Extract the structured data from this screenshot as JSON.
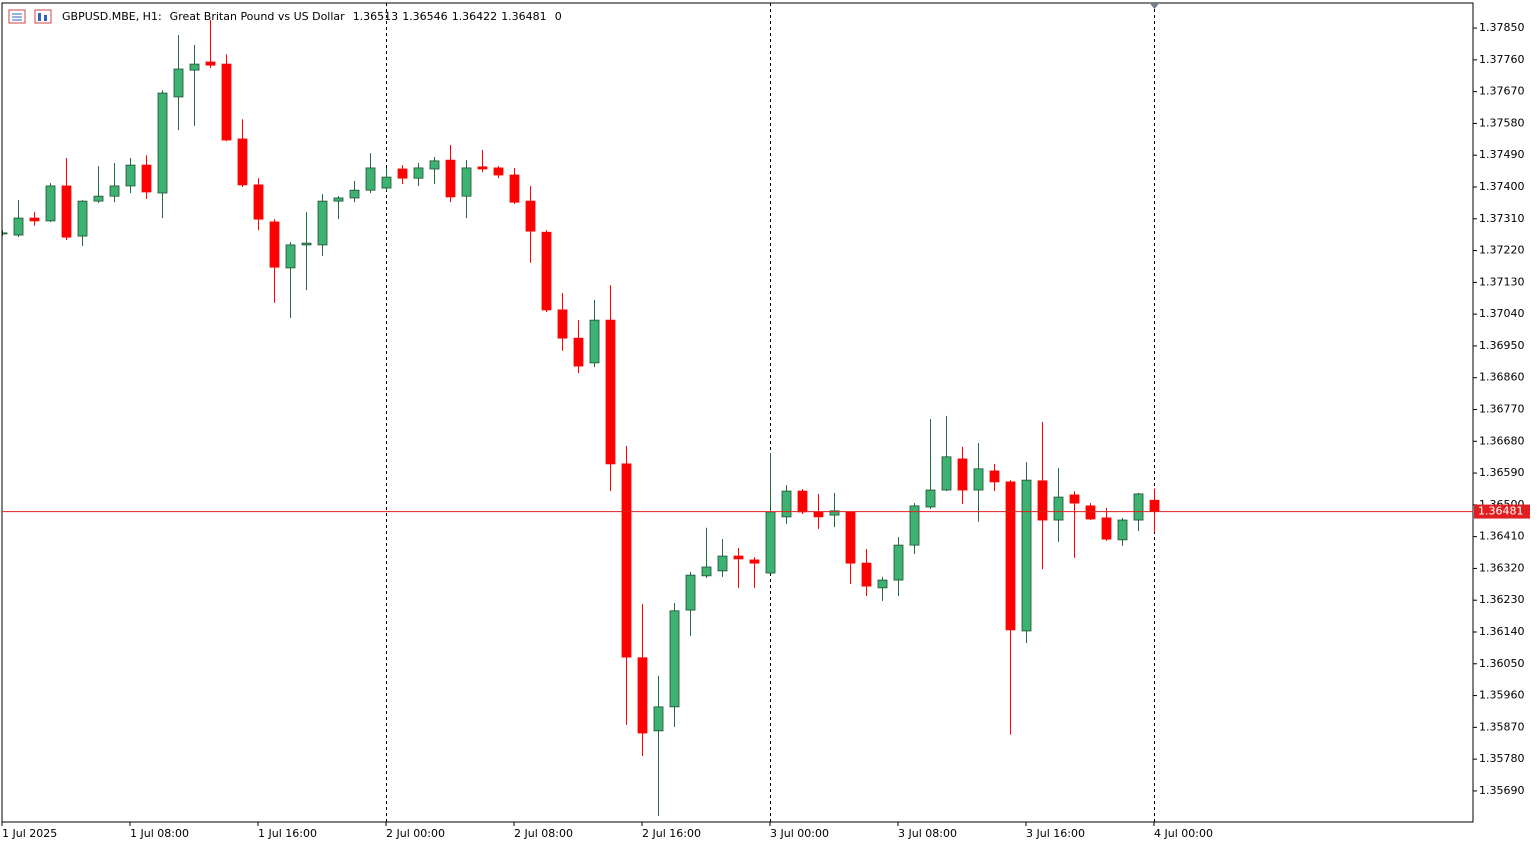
{
  "chart_data": {
    "type": "candlestick",
    "title": "GBPUSD.MBE, H1:",
    "subtitle": "Great Britan Pound vs US Dollar",
    "spread": 0,
    "up_color": "#3cb371",
    "down_color": "#ff0000",
    "price_line_color": "#e02020",
    "period_separators": true,
    "categories": [
      "1 Jul 2025",
      null,
      null,
      null,
      null,
      null,
      null,
      null,
      "1 Jul 08:00",
      null,
      null,
      null,
      null,
      null,
      null,
      null,
      "1 Jul 16:00",
      null,
      null,
      null,
      null,
      null,
      null,
      null,
      "2 Jul 00:00",
      null,
      null,
      null,
      null,
      null,
      null,
      null,
      "2 Jul 08:00",
      null,
      null,
      null,
      null,
      null,
      null,
      null,
      "2 Jul 16:00",
      null,
      null,
      null,
      null,
      null,
      null,
      null,
      "3 Jul 00:00",
      null,
      null,
      null,
      null,
      null,
      null,
      null,
      "3 Jul 08:00",
      null,
      null,
      null,
      null,
      null,
      null,
      null,
      "3 Jul 16:00",
      null,
      null,
      null,
      null,
      null,
      null,
      null,
      "4 Jul 00:00"
    ],
    "open": [
      1.3727,
      1.37264,
      1.37312,
      1.37304,
      1.37403,
      1.37261,
      1.3736,
      1.37374,
      1.37403,
      1.37462,
      1.37383,
      1.37655,
      1.37731,
      1.37754,
      1.37748,
      1.37536,
      1.37406,
      1.37301,
      1.37171,
      1.37236,
      1.37236,
      1.3736,
      1.37369,
      1.37391,
      1.37397,
      1.37451,
      1.37425,
      1.37451,
      1.37476,
      1.37374,
      1.37457,
      1.37454,
      1.37434,
      1.3736,
      1.37272,
      1.37052,
      1.36972,
      1.36902,
      1.37023,
      1.36616,
      1.36067,
      1.3586,
      1.35928,
      1.36202,
      1.36299,
      1.36313,
      1.36355,
      1.36344,
      1.36307,
      1.36466,
      1.36539,
      1.3648,
      1.36471,
      1.3648,
      1.36335,
      1.36265,
      1.36287,
      1.36386,
      1.36494,
      1.36542,
      1.3663,
      1.36542,
      1.36596,
      1.36565,
      1.36143,
      1.36568,
      1.36457,
      1.36528,
      1.36497,
      1.36463,
      1.36401,
      1.36457,
      1.36513
    ],
    "high": [
      1.37278,
      1.37363,
      1.37329,
      1.37411,
      1.37482,
      1.37363,
      1.37459,
      1.37468,
      1.37482,
      1.3749,
      1.37674,
      1.3783,
      1.37802,
      1.37873,
      1.37776,
      1.37592,
      1.37425,
      1.37309,
      1.37244,
      1.37329,
      1.3738,
      1.37374,
      1.37417,
      1.37496,
      1.37454,
      1.37462,
      1.37468,
      1.37485,
      1.37519,
      1.37476,
      1.37505,
      1.37459,
      1.37454,
      1.37403,
      1.37278,
      1.371,
      1.37023,
      1.3708,
      1.37122,
      1.36667,
      1.36219,
      1.36016,
      1.36222,
      1.3631,
      1.36435,
      1.36403,
      1.36378,
      1.36352,
      1.36647,
      1.36556,
      1.36545,
      1.36531,
      1.36534,
      1.3648,
      1.36375,
      1.36296,
      1.36409,
      1.36505,
      1.36743,
      1.36752,
      1.36664,
      1.36675,
      1.36616,
      1.3657,
      1.36621,
      1.36735,
      1.36604,
      1.36539,
      1.36505,
      1.36491,
      1.36463,
      1.36534,
      1.36546
    ],
    "low": [
      1.37261,
      1.37258,
      1.3729,
      1.37301,
      1.3725,
      1.37233,
      1.37355,
      1.37357,
      1.37383,
      1.37366,
      1.37312,
      1.37561,
      1.37573,
      1.37737,
      1.3753,
      1.374,
      1.37278,
      1.37072,
      1.37029,
      1.37108,
      1.37205,
      1.37309,
      1.37357,
      1.37383,
      1.37389,
      1.37408,
      1.37403,
      1.37408,
      1.37357,
      1.37312,
      1.37442,
      1.37425,
      1.37352,
      1.37185,
      1.37046,
      1.36936,
      1.36873,
      1.3689,
      1.36539,
      1.35877,
      1.35789,
      1.35619,
      1.35871,
      1.36129,
      1.36293,
      1.36296,
      1.36265,
      1.36265,
      1.36307,
      1.36446,
      1.36474,
      1.36432,
      1.36437,
      1.36276,
      1.36242,
      1.36228,
      1.36242,
      1.36361,
      1.36488,
      1.36539,
      1.36502,
      1.36452,
      1.36539,
      1.35849,
      1.36109,
      1.36318,
      1.36395,
      1.3635,
      1.36457,
      1.36398,
      1.36384,
      1.36426,
      1.36422
    ],
    "close": [
      1.3727,
      1.37312,
      1.37304,
      1.37403,
      1.37258,
      1.3736,
      1.37374,
      1.37403,
      1.37462,
      1.37386,
      1.37666,
      1.37734,
      1.37748,
      1.37745,
      1.37533,
      1.37406,
      1.37309,
      1.37173,
      1.37236,
      1.37241,
      1.3736,
      1.37369,
      1.37391,
      1.37454,
      1.37428,
      1.37425,
      1.37454,
      1.37474,
      1.37372,
      1.37454,
      1.37451,
      1.37434,
      1.37357,
      1.37275,
      1.37052,
      1.36972,
      1.36893,
      1.37023,
      1.36616,
      1.36069,
      1.35854,
      1.35928,
      1.362,
      1.36301,
      1.36324,
      1.36355,
      1.36347,
      1.36335,
      1.3648,
      1.36539,
      1.3648,
      1.36466,
      1.36483,
      1.36335,
      1.3627,
      1.36287,
      1.36386,
      1.36497,
      1.36542,
      1.36636,
      1.36542,
      1.36602,
      1.36565,
      1.36146,
      1.3657,
      1.36457,
      1.36522,
      1.36505,
      1.3646,
      1.36403,
      1.36457,
      1.36531,
      1.36481
    ],
    "ylim": [
      1.35602,
      1.37921
    ],
    "yticks": [
      {
        "value": 1.3785,
        "label": "1.37850"
      },
      {
        "value": 1.3776,
        "label": "1.37760"
      },
      {
        "value": 1.3767,
        "label": "1.37670"
      },
      {
        "value": 1.3758,
        "label": "1.37580"
      },
      {
        "value": 1.3749,
        "label": "1.37490"
      },
      {
        "value": 1.374,
        "label": "1.37400"
      },
      {
        "value": 1.3731,
        "label": "1.37310"
      },
      {
        "value": 1.3722,
        "label": "1.37220"
      },
      {
        "value": 1.3713,
        "label": "1.37130"
      },
      {
        "value": 1.3704,
        "label": "1.37040"
      },
      {
        "value": 1.3695,
        "label": "1.36950"
      },
      {
        "value": 1.3686,
        "label": "1.36860"
      },
      {
        "value": 1.3677,
        "label": "1.36770"
      },
      {
        "value": 1.3668,
        "label": "1.36680"
      },
      {
        "value": 1.3659,
        "label": "1.36590"
      },
      {
        "value": 1.365,
        "label": "1.36500"
      },
      {
        "value": 1.3641,
        "label": "1.36410"
      },
      {
        "value": 1.3632,
        "label": "1.36320"
      },
      {
        "value": 1.3623,
        "label": "1.36230"
      },
      {
        "value": 1.3614,
        "label": "1.36140"
      },
      {
        "value": 1.3605,
        "label": "1.36050"
      },
      {
        "value": 1.3596,
        "label": "1.35960"
      },
      {
        "value": 1.3587,
        "label": "1.35870"
      },
      {
        "value": 1.3578,
        "label": "1.35780"
      },
      {
        "value": 1.3569,
        "label": "1.35690"
      }
    ]
  }
}
